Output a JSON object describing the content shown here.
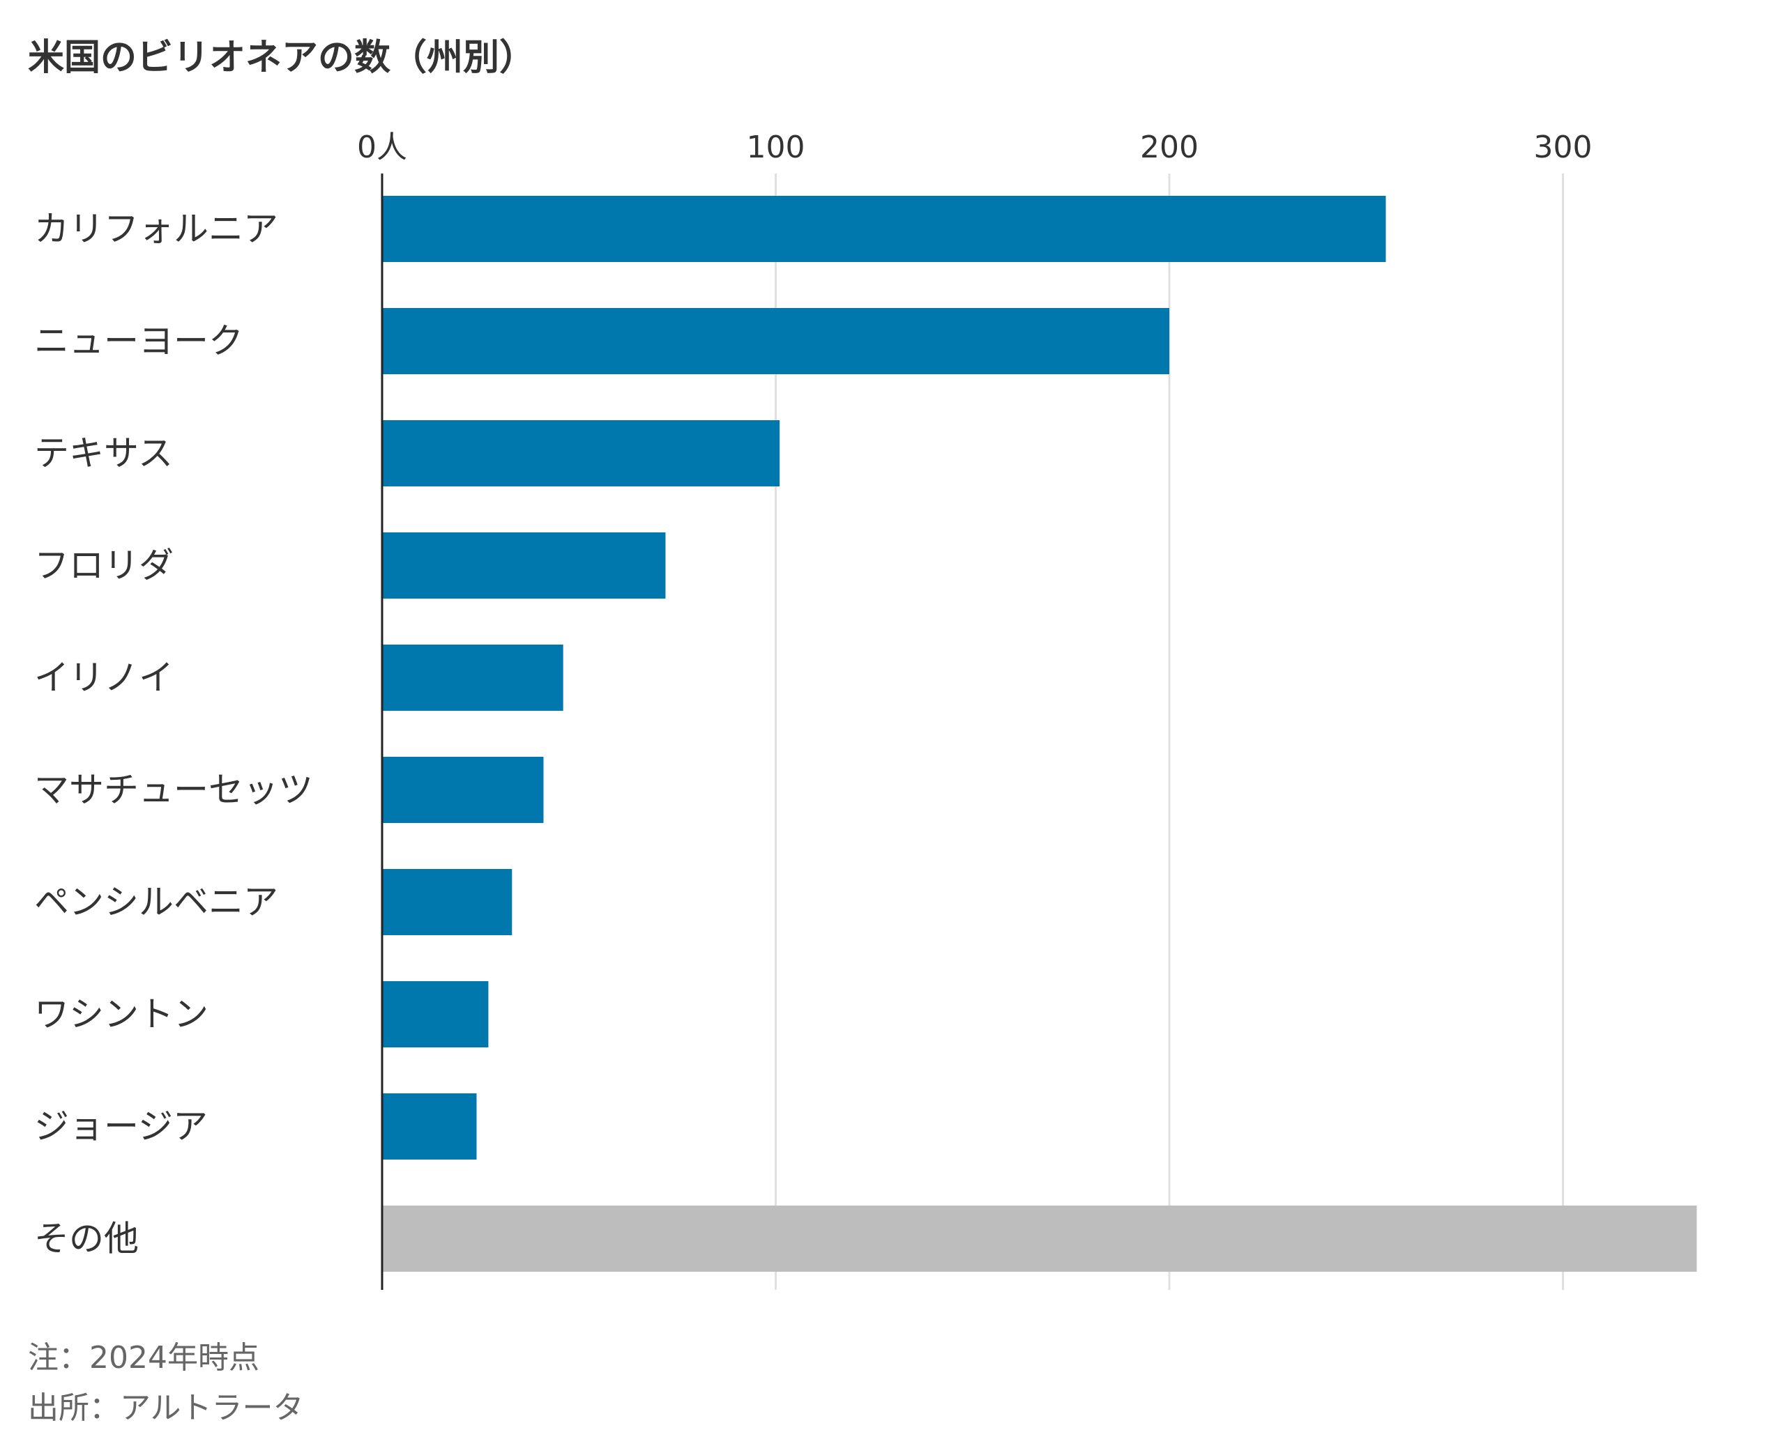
{
  "chart_data": {
    "type": "bar",
    "orientation": "horizontal",
    "title": "米国のビリオネアの数（州別）",
    "xlabel": "",
    "ylabel": "",
    "xlim": [
      0,
      340
    ],
    "x_ticks": [
      0,
      100,
      200,
      300
    ],
    "x_tick_labels": [
      "0人",
      "100",
      "200",
      "300"
    ],
    "grid": true,
    "categories": [
      "カリフォルニア",
      "ニューヨーク",
      "テキサス",
      "フロリダ",
      "イリノイ",
      "マサチューセッツ",
      "ペンシルベニア",
      "ワシントン",
      "ジョージア",
      "その他"
    ],
    "values": [
      255,
      200,
      101,
      72,
      46,
      41,
      33,
      27,
      24,
      334
    ],
    "colors": [
      "#0078ae",
      "#0078ae",
      "#0078ae",
      "#0078ae",
      "#0078ae",
      "#0078ae",
      "#0078ae",
      "#0078ae",
      "#0078ae",
      "#bdbdbd"
    ]
  },
  "notes": {
    "note": "注：2024年時点",
    "source": "出所：アルトラータ"
  }
}
